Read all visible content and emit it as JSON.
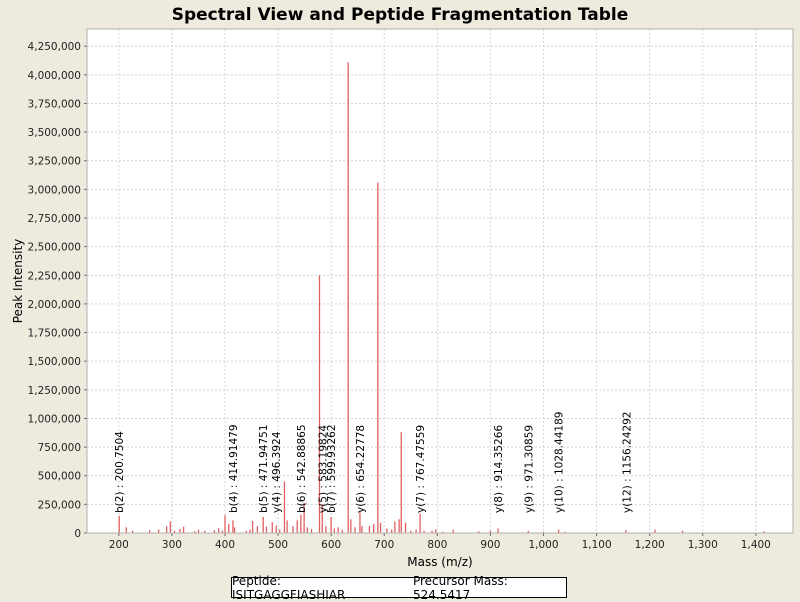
{
  "chart_data": {
    "type": "bar",
    "title": "Spectral View and Peptide Fragmentation Table",
    "xlabel": "Mass (m/z)",
    "ylabel": "Peak Intensity",
    "xlim": [
      140,
      1470
    ],
    "ylim": [
      0,
      4400000
    ],
    "x_ticks": [
      200,
      300,
      400,
      500,
      600,
      700,
      800,
      900,
      1000,
      1100,
      1200,
      1300,
      1400
    ],
    "x_tick_labels": [
      "200",
      "300",
      "400",
      "500",
      "600",
      "700",
      "800",
      "900",
      "1,000",
      "1,100",
      "1,200",
      "1,300",
      "1,400"
    ],
    "y_ticks": [
      0,
      250000,
      500000,
      750000,
      1000000,
      1250000,
      1500000,
      1750000,
      2000000,
      2250000,
      2500000,
      2750000,
      3000000,
      3250000,
      3500000,
      3750000,
      4000000,
      4250000
    ],
    "y_tick_labels": [
      "0",
      "250,000",
      "500,000",
      "750,000",
      "1,000,000",
      "1,250,000",
      "1,500,000",
      "1,750,000",
      "2,000,000",
      "2,250,000",
      "2,500,000",
      "2,750,000",
      "3,000,000",
      "3,250,000",
      "3,500,000",
      "3,750,000",
      "4,000,000",
      "4,250,000"
    ],
    "grid": true,
    "peak_color": "#e06060",
    "peaks": [
      {
        "mz": 200.7,
        "intensity": 150000
      },
      {
        "mz": 214,
        "intensity": 50000
      },
      {
        "mz": 226,
        "intensity": 20000
      },
      {
        "mz": 258,
        "intensity": 25000
      },
      {
        "mz": 275,
        "intensity": 30000
      },
      {
        "mz": 290,
        "intensity": 60000
      },
      {
        "mz": 297,
        "intensity": 100000
      },
      {
        "mz": 305,
        "intensity": 20000
      },
      {
        "mz": 315,
        "intensity": 35000
      },
      {
        "mz": 322,
        "intensity": 55000
      },
      {
        "mz": 343,
        "intensity": 15000
      },
      {
        "mz": 350,
        "intensity": 30000
      },
      {
        "mz": 362,
        "intensity": 20000
      },
      {
        "mz": 380,
        "intensity": 25000
      },
      {
        "mz": 388,
        "intensity": 40000
      },
      {
        "mz": 395,
        "intensity": 20000
      },
      {
        "mz": 400,
        "intensity": 155000
      },
      {
        "mz": 407,
        "intensity": 80000
      },
      {
        "mz": 414.9,
        "intensity": 110000
      },
      {
        "mz": 418,
        "intensity": 50000
      },
      {
        "mz": 440,
        "intensity": 20000
      },
      {
        "mz": 447,
        "intensity": 30000
      },
      {
        "mz": 452,
        "intensity": 105000
      },
      {
        "mz": 461,
        "intensity": 60000
      },
      {
        "mz": 471.9,
        "intensity": 140000
      },
      {
        "mz": 478,
        "intensity": 55000
      },
      {
        "mz": 489,
        "intensity": 95000
      },
      {
        "mz": 496.4,
        "intensity": 65000
      },
      {
        "mz": 503,
        "intensity": 30000
      },
      {
        "mz": 512,
        "intensity": 450000
      },
      {
        "mz": 517,
        "intensity": 110000
      },
      {
        "mz": 528,
        "intensity": 60000
      },
      {
        "mz": 536,
        "intensity": 110000
      },
      {
        "mz": 542.9,
        "intensity": 160000
      },
      {
        "mz": 549,
        "intensity": 265000
      },
      {
        "mz": 555,
        "intensity": 50000
      },
      {
        "mz": 563,
        "intensity": 35000
      },
      {
        "mz": 578,
        "intensity": 2250000
      },
      {
        "mz": 583.2,
        "intensity": 250000
      },
      {
        "mz": 590,
        "intensity": 60000
      },
      {
        "mz": 599.9,
        "intensity": 140000
      },
      {
        "mz": 606,
        "intensity": 40000
      },
      {
        "mz": 613,
        "intensity": 50000
      },
      {
        "mz": 621,
        "intensity": 30000
      },
      {
        "mz": 632,
        "intensity": 4110000
      },
      {
        "mz": 637,
        "intensity": 120000
      },
      {
        "mz": 645,
        "intensity": 50000
      },
      {
        "mz": 654.2,
        "intensity": 180000
      },
      {
        "mz": 658,
        "intensity": 60000
      },
      {
        "mz": 672,
        "intensity": 60000
      },
      {
        "mz": 680,
        "intensity": 80000
      },
      {
        "mz": 688,
        "intensity": 3060000
      },
      {
        "mz": 693,
        "intensity": 90000
      },
      {
        "mz": 705,
        "intensity": 40000
      },
      {
        "mz": 714,
        "intensity": 30000
      },
      {
        "mz": 720,
        "intensity": 100000
      },
      {
        "mz": 728,
        "intensity": 120000
      },
      {
        "mz": 732,
        "intensity": 880000
      },
      {
        "mz": 740,
        "intensity": 90000
      },
      {
        "mz": 750,
        "intensity": 20000
      },
      {
        "mz": 760,
        "intensity": 30000
      },
      {
        "mz": 767.5,
        "intensity": 170000
      },
      {
        "mz": 775,
        "intensity": 20000
      },
      {
        "mz": 790,
        "intensity": 20000
      },
      {
        "mz": 797,
        "intensity": 30000
      },
      {
        "mz": 810,
        "intensity": 10000
      },
      {
        "mz": 830,
        "intensity": 30000
      },
      {
        "mz": 878,
        "intensity": 15000
      },
      {
        "mz": 900,
        "intensity": 20000
      },
      {
        "mz": 914.4,
        "intensity": 40000
      },
      {
        "mz": 971.3,
        "intensity": 20000
      },
      {
        "mz": 1000,
        "intensity": 10000
      },
      {
        "mz": 1028.4,
        "intensity": 30000
      },
      {
        "mz": 1040,
        "intensity": 10000
      },
      {
        "mz": 1155.2,
        "intensity": 25000
      },
      {
        "mz": 1210,
        "intensity": 30000
      },
      {
        "mz": 1262,
        "intensity": 20000
      },
      {
        "mz": 1415,
        "intensity": 15000
      }
    ],
    "annotations": [
      {
        "mz": 200.7504,
        "label": "b(2) : 200.7504"
      },
      {
        "mz": 414.91479,
        "label": "b(4) : 414.91479"
      },
      {
        "mz": 471.94751,
        "label": "b(5) : 471.94751"
      },
      {
        "mz": 496.3924,
        "label": "y(4) : 496.3924"
      },
      {
        "mz": 542.88865,
        "label": "b(6) : 542.88865"
      },
      {
        "mz": 583.19824,
        "label": "y(5) : 583.19824"
      },
      {
        "mz": 599.93262,
        "label": "b(7) : 599.93262"
      },
      {
        "mz": 654.22778,
        "label": "y(6) : 654.22778"
      },
      {
        "mz": 767.47559,
        "label": "y(7) : 767.47559"
      },
      {
        "mz": 914.35266,
        "label": "y(8) : 914.35266"
      },
      {
        "mz": 971.30859,
        "label": "y(9) : 971.30859"
      },
      {
        "mz": 1028.44189,
        "label": "y(10) : 1028.44189"
      },
      {
        "mz": 1156.24292,
        "label": "y(12) : 1156.24292"
      }
    ]
  },
  "info": {
    "peptide_text": "Peptide: ISITGAGGFIASHIAR",
    "precursor_text": "Precursor Mass: 524.5417"
  }
}
